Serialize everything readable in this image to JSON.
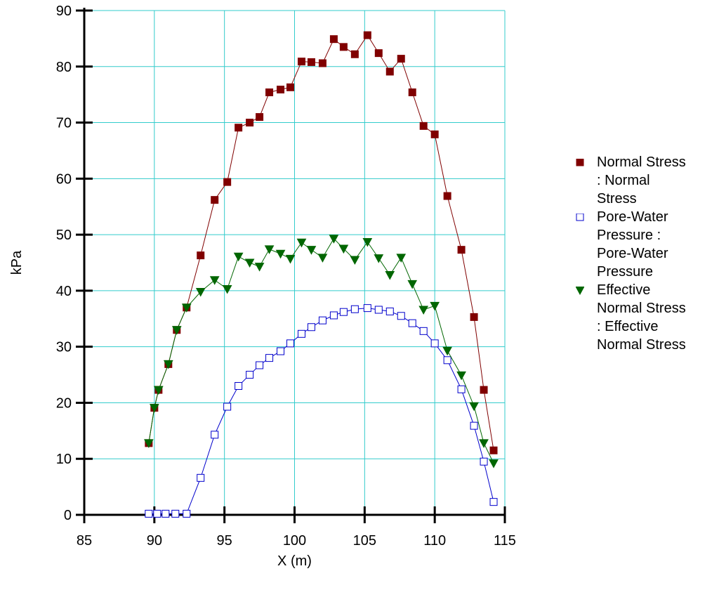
{
  "chart_data": {
    "type": "scatter",
    "xlabel": "X (m)",
    "ylabel": "kPa",
    "xlim": [
      85,
      115
    ],
    "ylim": [
      0,
      90
    ],
    "xticks": [
      85,
      90,
      95,
      100,
      105,
      110,
      115
    ],
    "yticks": [
      0,
      10,
      20,
      30,
      40,
      50,
      60,
      70,
      80,
      90
    ],
    "grid": true,
    "legend_position": "right",
    "series": [
      {
        "name": "Normal Stress : Normal Stress",
        "legend_lines": [
          "Normal Stress",
          ": Normal",
          "Stress"
        ],
        "color": "#800000",
        "marker": "filled-square",
        "x": [
          89.6,
          90.0,
          90.3,
          91.0,
          91.6,
          92.3,
          93.3,
          94.3,
          95.2,
          96.0,
          96.8,
          97.5,
          98.2,
          99.0,
          99.7,
          100.5,
          101.2,
          102.0,
          102.8,
          103.5,
          104.3,
          105.2,
          106.0,
          106.8,
          107.6,
          108.4,
          109.2,
          110.0,
          110.9,
          111.9,
          112.8,
          113.5,
          114.2
        ],
        "y": [
          12.8,
          19.1,
          22.3,
          26.9,
          33.0,
          37.0,
          46.3,
          56.2,
          59.4,
          69.1,
          70.0,
          71.0,
          75.4,
          75.9,
          76.3,
          80.9,
          80.8,
          80.6,
          84.9,
          83.5,
          82.2,
          85.6,
          82.4,
          79.1,
          81.4,
          75.4,
          69.4,
          67.9,
          56.9,
          47.3,
          35.3,
          22.3,
          11.5
        ]
      },
      {
        "name": "Pore-Water Pressure : Pore-Water Pressure",
        "legend_lines": [
          "Pore-Water",
          "Pressure :",
          "Pore-Water",
          "Pressure"
        ],
        "color": "#0000cc",
        "marker": "hollow-square",
        "x": [
          89.6,
          90.2,
          90.8,
          91.5,
          92.3,
          93.3,
          94.3,
          95.2,
          96.0,
          96.8,
          97.5,
          98.2,
          99.0,
          99.7,
          100.5,
          101.2,
          102.0,
          102.8,
          103.5,
          104.3,
          105.2,
          106.0,
          106.8,
          107.6,
          108.4,
          109.2,
          110.0,
          110.9,
          111.9,
          112.8,
          113.5,
          114.2
        ],
        "y": [
          0.2,
          0.2,
          0.2,
          0.2,
          0.2,
          6.6,
          14.3,
          19.3,
          23.0,
          25.0,
          26.7,
          28.0,
          29.2,
          30.6,
          32.3,
          33.5,
          34.7,
          35.6,
          36.2,
          36.7,
          36.9,
          36.6,
          36.3,
          35.5,
          34.2,
          32.8,
          30.6,
          27.6,
          22.4,
          15.9,
          9.5,
          2.3
        ]
      },
      {
        "name": "Effective Normal Stress : Effective Normal Stress",
        "legend_lines": [
          "Effective",
          "Normal Stress",
          ": Effective",
          "Normal Stress"
        ],
        "color": "#006600",
        "marker": "filled-triangle-down",
        "x": [
          89.6,
          90.0,
          90.3,
          91.0,
          91.6,
          92.3,
          93.3,
          94.3,
          95.2,
          96.0,
          96.8,
          97.5,
          98.2,
          99.0,
          99.7,
          100.5,
          101.2,
          102.0,
          102.8,
          103.5,
          104.3,
          105.2,
          106.0,
          106.8,
          107.6,
          108.4,
          109.2,
          110.0,
          110.9,
          111.9,
          112.8,
          113.5,
          114.2
        ],
        "y": [
          12.8,
          19.1,
          22.3,
          26.9,
          33.0,
          37.0,
          39.8,
          41.9,
          40.3,
          46.1,
          45.0,
          44.3,
          47.4,
          46.6,
          45.7,
          48.6,
          47.3,
          45.9,
          49.3,
          47.5,
          45.5,
          48.7,
          45.8,
          42.8,
          45.9,
          41.2,
          36.6,
          37.3,
          29.3,
          24.9,
          19.4,
          12.8,
          9.2
        ]
      }
    ]
  }
}
